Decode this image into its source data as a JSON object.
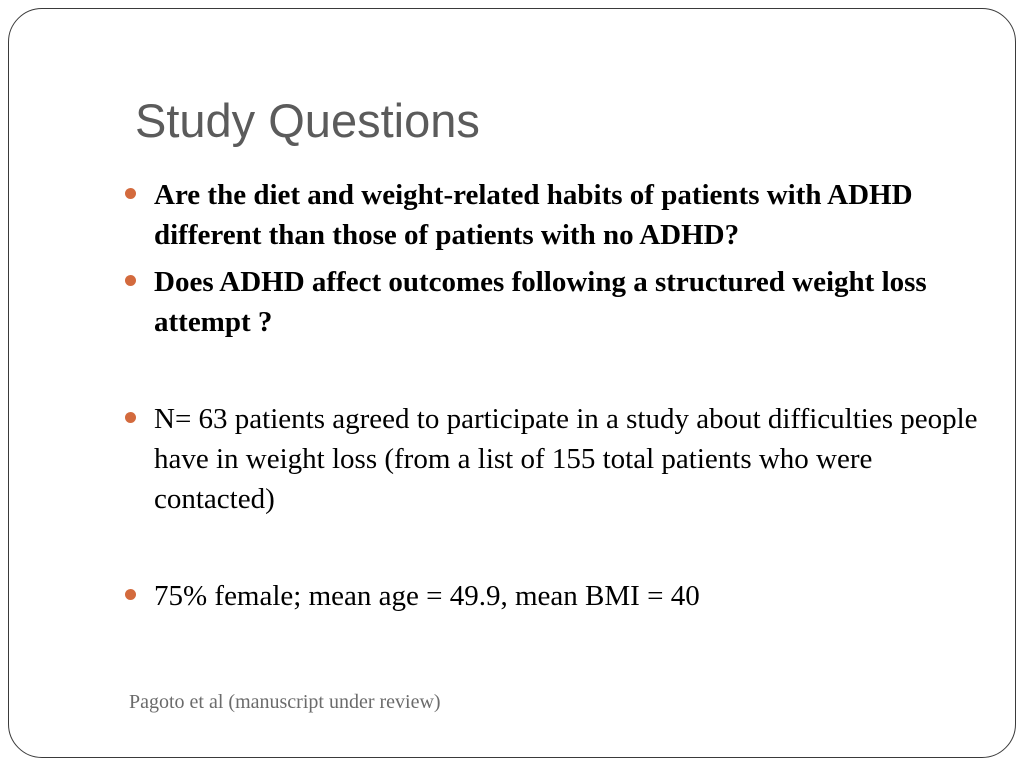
{
  "slide": {
    "title": "Study Questions",
    "bullets": [
      "Are the diet and weight-related habits of patients with ADHD different than those of patients with no ADHD?",
      "Does ADHD affect outcomes following a structured weight loss attempt ?",
      "N= 63 patients agreed to participate in a study about difficulties people have in weight loss (from a list of 155 total patients who were contacted)",
      "75% female; mean age = 49.9, mean BMI = 40"
    ],
    "footnote": "Pagoto et al (manuscript under review)"
  },
  "colors": {
    "bullet_dot": "#d36a3d",
    "title_text": "#5b5b5b",
    "border": "#3a3a3a"
  }
}
